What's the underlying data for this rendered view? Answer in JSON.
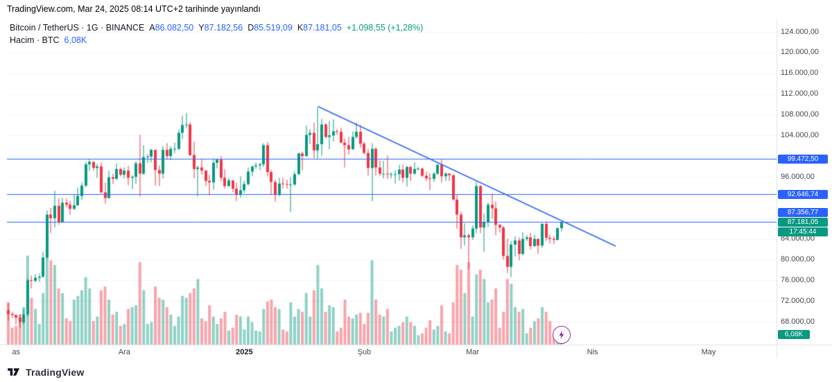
{
  "attribution": "TradingView.com, Mar 24, 2025 08:14 UTC+2 tarihinde yayınlandı",
  "legend": {
    "symbol_text": "Bitcoin / TetherUS · 1G · BINANCE",
    "ohlc": [
      {
        "key": "A",
        "value": "86.082,50"
      },
      {
        "key": "Y",
        "value": "87.182,56"
      },
      {
        "key": "D",
        "value": "85.519,09"
      },
      {
        "key": "K",
        "value": "87.181,05"
      }
    ],
    "change": "+1.098,55 (+1,28%)",
    "volume_text": "Hacim · BTC",
    "volume_value": "6,08K"
  },
  "price_axis": {
    "ticks": [
      {
        "label": "124.000,00",
        "value": 124000
      },
      {
        "label": "120.000,00",
        "value": 120000
      },
      {
        "label": "116.000,00",
        "value": 116000
      },
      {
        "label": "112.000,00",
        "value": 112000
      },
      {
        "label": "108.000,00",
        "value": 108000
      },
      {
        "label": "104.000,00",
        "value": 104000
      },
      {
        "label": "96.000,00",
        "value": 96000
      },
      {
        "label": "84.000,00",
        "value": 84000
      },
      {
        "label": "80.000,00",
        "value": 80000
      },
      {
        "label": "76.000,00",
        "value": 76000
      },
      {
        "label": "72.000,00",
        "value": 72000
      },
      {
        "label": "68.000,00",
        "value": 68000
      }
    ]
  },
  "time_axis": {
    "ticks": [
      {
        "label": "as",
        "day": 2,
        "bold": false
      },
      {
        "label": "Ara",
        "day": 30,
        "bold": false
      },
      {
        "label": "2025",
        "day": 61,
        "bold": true
      },
      {
        "label": "Şub",
        "day": 92,
        "bold": false
      },
      {
        "label": "Mar",
        "day": 120,
        "bold": false
      },
      {
        "label": "Nis",
        "day": 151,
        "bold": false
      },
      {
        "label": "May",
        "day": 181,
        "bold": false
      }
    ]
  },
  "current_price": {
    "label": "87.181,05",
    "value": 87181.05,
    "countdown": "17:45:44"
  },
  "volume_axis_badge": "6,08K",
  "logo": {
    "text": "TradingView"
  },
  "colors": {
    "up": "#089981",
    "down": "#F23645",
    "vol_up": "rgba(8,153,129,0.45)",
    "vol_down": "rgba(242,54,69,0.45)",
    "line": "#2962FF",
    "grid": "#f2f3f7",
    "separator": "#e0e3eb",
    "badge_blue": "#2962FF",
    "badge_green": "#089981",
    "boost_purple": "#9c27b0"
  },
  "chart_data": {
    "type": "candlestick",
    "title": "Bitcoin / TetherUS · 1G · BINANCE",
    "interval": "1D",
    "start_date": "2024-11-01",
    "end_date": "2025-03-24",
    "unit": "OHLC in thousands of USDT, volume in K BTC, rows are [open,high,low,close,volume]",
    "ylim": [
      66000,
      126000
    ],
    "visible_days": 199,
    "legend_position": "top-left",
    "grid": "faint",
    "candles": [
      [
        70.2,
        71.6,
        68.2,
        69.5,
        45
      ],
      [
        69.5,
        69.9,
        68.7,
        69.3,
        18
      ],
      [
        69.3,
        69.4,
        67.5,
        68.8,
        20
      ],
      [
        68.8,
        69.5,
        66.8,
        67.9,
        32
      ],
      [
        67.9,
        70.5,
        67.5,
        69.4,
        40
      ],
      [
        69.4,
        76.4,
        69.0,
        76.0,
        95
      ],
      [
        76.0,
        76.9,
        74.4,
        75.9,
        50
      ],
      [
        75.9,
        77.2,
        75.6,
        76.5,
        38
      ],
      [
        76.5,
        77.3,
        75.7,
        76.7,
        22
      ],
      [
        76.7,
        81.5,
        76.5,
        80.4,
        55
      ],
      [
        80.4,
        89.5,
        80.2,
        88.7,
        98
      ],
      [
        88.7,
        90.0,
        85.1,
        88.0,
        90
      ],
      [
        88.0,
        93.3,
        86.2,
        90.4,
        85
      ],
      [
        90.4,
        91.8,
        86.7,
        87.3,
        60
      ],
      [
        87.3,
        91.9,
        87.1,
        91.0,
        55
      ],
      [
        91.0,
        91.8,
        90.1,
        90.6,
        28
      ],
      [
        90.6,
        91.4,
        88.7,
        89.8,
        25
      ],
      [
        89.8,
        92.6,
        89.6,
        90.5,
        48
      ],
      [
        90.5,
        93.9,
        90.4,
        92.3,
        52
      ],
      [
        92.3,
        94.9,
        91.5,
        94.3,
        58
      ],
      [
        94.3,
        98.9,
        94.0,
        98.4,
        72
      ],
      [
        98.4,
        99.5,
        97.2,
        98.9,
        60
      ],
      [
        98.9,
        98.9,
        97.2,
        97.7,
        25
      ],
      [
        97.7,
        98.5,
        95.8,
        98.0,
        30
      ],
      [
        98.0,
        98.8,
        92.8,
        93.0,
        58
      ],
      [
        93.0,
        94.9,
        90.8,
        91.9,
        62
      ],
      [
        91.9,
        97.2,
        91.8,
        95.9,
        48
      ],
      [
        95.9,
        96.6,
        94.6,
        95.6,
        32
      ],
      [
        95.6,
        98.6,
        95.4,
        97.5,
        35
      ],
      [
        97.5,
        97.8,
        96.1,
        96.4,
        20
      ],
      [
        96.4,
        97.8,
        95.7,
        97.2,
        22
      ],
      [
        97.2,
        98.1,
        94.4,
        95.8,
        38
      ],
      [
        95.8,
        96.3,
        93.6,
        96.0,
        40
      ],
      [
        96.0,
        99.0,
        94.6,
        98.6,
        42
      ],
      [
        98.6,
        104.1,
        92.2,
        96.6,
        88
      ],
      [
        96.6,
        102.1,
        96.4,
        99.8,
        58
      ],
      [
        99.8,
        100.4,
        98.7,
        99.9,
        22
      ],
      [
        99.9,
        101.4,
        98.8,
        101.2,
        24
      ],
      [
        101.2,
        101.2,
        94.3,
        97.3,
        62
      ],
      [
        97.3,
        98.2,
        94.2,
        96.6,
        50
      ],
      [
        96.6,
        101.9,
        95.7,
        101.2,
        48
      ],
      [
        101.2,
        102.5,
        99.3,
        100.0,
        40
      ],
      [
        100.0,
        101.9,
        99.2,
        101.4,
        32
      ],
      [
        101.4,
        102.6,
        100.6,
        101.4,
        20
      ],
      [
        101.4,
        105.1,
        101.2,
        104.5,
        30
      ],
      [
        104.5,
        107.8,
        103.3,
        106.0,
        52
      ],
      [
        106.0,
        108.3,
        105.3,
        106.1,
        50
      ],
      [
        106.1,
        106.5,
        100.0,
        100.2,
        55
      ],
      [
        100.2,
        102.8,
        95.7,
        97.5,
        60
      ],
      [
        97.5,
        98.2,
        92.2,
        97.8,
        70
      ],
      [
        97.8,
        99.5,
        96.4,
        97.2,
        28
      ],
      [
        97.2,
        97.3,
        94.2,
        95.2,
        25
      ],
      [
        95.2,
        96.4,
        92.4,
        94.9,
        42
      ],
      [
        94.9,
        99.5,
        93.5,
        98.7,
        30
      ],
      [
        98.7,
        99.5,
        97.6,
        99.3,
        22
      ],
      [
        99.3,
        100.0,
        95.2,
        95.8,
        28
      ],
      [
        95.8,
        97.5,
        93.7,
        94.2,
        35
      ],
      [
        94.2,
        95.8,
        94.1,
        95.3,
        15
      ],
      [
        95.3,
        95.3,
        93.0,
        93.7,
        18
      ],
      [
        93.7,
        94.9,
        91.3,
        92.6,
        32
      ],
      [
        92.6,
        96.1,
        92.0,
        93.4,
        30
      ],
      [
        93.4,
        95.2,
        92.9,
        94.6,
        16
      ],
      [
        94.6,
        97.8,
        94.3,
        97.0,
        30
      ],
      [
        97.0,
        98.1,
        96.1,
        98.0,
        24
      ],
      [
        98.0,
        98.8,
        97.5,
        98.2,
        15
      ],
      [
        98.2,
        98.8,
        97.3,
        98.4,
        14
      ],
      [
        98.4,
        102.5,
        97.9,
        102.1,
        38
      ],
      [
        102.1,
        102.7,
        96.1,
        96.9,
        46
      ],
      [
        96.9,
        97.3,
        92.5,
        95.0,
        48
      ],
      [
        95.0,
        95.4,
        91.2,
        92.5,
        40
      ],
      [
        92.5,
        95.8,
        92.2,
        94.7,
        38
      ],
      [
        94.7,
        95.8,
        93.7,
        94.6,
        16
      ],
      [
        94.6,
        95.5,
        93.7,
        94.5,
        14
      ],
      [
        94.5,
        95.9,
        89.2,
        94.5,
        45
      ],
      [
        94.5,
        97.1,
        94.3,
        96.5,
        30
      ],
      [
        96.5,
        100.7,
        96.4,
        100.5,
        38
      ],
      [
        100.5,
        100.9,
        97.3,
        100.0,
        35
      ],
      [
        100.0,
        105.9,
        99.9,
        104.1,
        55
      ],
      [
        104.1,
        105.2,
        102.3,
        104.5,
        30
      ],
      [
        104.5,
        106.4,
        99.6,
        101.1,
        58
      ],
      [
        101.1,
        109.4,
        99.5,
        102.3,
        85
      ],
      [
        102.3,
        107.2,
        100.1,
        106.1,
        60
      ],
      [
        106.1,
        106.4,
        103.4,
        103.7,
        35
      ],
      [
        103.7,
        106.8,
        101.3,
        104.0,
        42
      ],
      [
        104.0,
        107.1,
        102.8,
        104.8,
        40
      ],
      [
        104.8,
        105.2,
        104.1,
        104.7,
        14
      ],
      [
        104.7,
        105.5,
        102.5,
        102.6,
        18
      ],
      [
        102.6,
        103.4,
        97.8,
        102.1,
        48
      ],
      [
        102.1,
        103.7,
        100.3,
        101.3,
        30
      ],
      [
        101.3,
        104.8,
        101.3,
        103.7,
        28
      ],
      [
        103.7,
        106.5,
        103.3,
        104.7,
        32
      ],
      [
        104.7,
        106.0,
        101.6,
        102.4,
        34
      ],
      [
        102.4,
        102.8,
        100.4,
        100.6,
        22
      ],
      [
        100.6,
        101.4,
        96.2,
        97.7,
        34
      ],
      [
        97.7,
        102.5,
        91.3,
        101.4,
        90
      ],
      [
        101.4,
        101.7,
        96.2,
        97.8,
        48
      ],
      [
        97.8,
        99.1,
        96.2,
        96.6,
        32
      ],
      [
        96.6,
        99.1,
        95.7,
        96.6,
        30
      ],
      [
        96.6,
        100.1,
        95.6,
        96.5,
        38
      ],
      [
        96.5,
        96.9,
        95.7,
        96.5,
        14
      ],
      [
        96.5,
        97.3,
        94.7,
        96.5,
        18
      ],
      [
        96.5,
        98.3,
        95.3,
        97.4,
        20
      ],
      [
        97.4,
        98.4,
        94.9,
        95.8,
        24
      ],
      [
        95.8,
        98.1,
        94.1,
        97.9,
        30
      ],
      [
        97.9,
        98.1,
        95.2,
        96.6,
        24
      ],
      [
        96.6,
        98.8,
        96.4,
        97.5,
        20
      ],
      [
        97.5,
        97.9,
        97.2,
        97.6,
        10
      ],
      [
        97.6,
        97.7,
        96.0,
        96.2,
        12
      ],
      [
        96.2,
        97.0,
        95.2,
        95.7,
        18
      ],
      [
        95.7,
        96.7,
        93.4,
        95.6,
        26
      ],
      [
        95.6,
        96.9,
        95.0,
        96.6,
        16
      ],
      [
        96.6,
        98.5,
        96.4,
        98.3,
        20
      ],
      [
        98.3,
        99.4,
        94.9,
        96.1,
        42
      ],
      [
        96.1,
        96.9,
        95.2,
        96.6,
        14
      ],
      [
        96.6,
        96.7,
        95.2,
        96.3,
        12
      ],
      [
        96.3,
        96.5,
        91.4,
        91.6,
        45
      ],
      [
        91.6,
        92.5,
        86.0,
        88.7,
        85
      ],
      [
        88.7,
        89.3,
        82.1,
        84.3,
        80
      ],
      [
        84.3,
        87.0,
        82.7,
        84.7,
        55
      ],
      [
        84.7,
        85.0,
        78.2,
        84.3,
        88
      ],
      [
        84.3,
        86.6,
        83.8,
        86.0,
        30
      ],
      [
        86.0,
        95.0,
        85.1,
        94.2,
        75
      ],
      [
        94.2,
        94.4,
        85.1,
        86.2,
        80
      ],
      [
        86.2,
        88.9,
        81.5,
        87.2,
        70
      ],
      [
        87.2,
        91.0,
        86.3,
        90.6,
        45
      ],
      [
        90.6,
        92.8,
        87.9,
        89.9,
        48
      ],
      [
        89.9,
        91.2,
        84.7,
        86.7,
        60
      ],
      [
        86.7,
        86.9,
        85.2,
        86.2,
        18
      ],
      [
        86.2,
        86.5,
        80.0,
        80.7,
        35
      ],
      [
        80.7,
        84.1,
        77.4,
        78.6,
        70
      ],
      [
        78.6,
        83.6,
        76.6,
        82.9,
        65
      ],
      [
        82.9,
        84.5,
        80.6,
        83.7,
        40
      ],
      [
        83.7,
        84.3,
        79.9,
        81.1,
        35
      ],
      [
        81.1,
        85.3,
        80.8,
        84.0,
        38
      ],
      [
        84.0,
        84.7,
        83.6,
        84.3,
        12
      ],
      [
        84.3,
        85.1,
        82.0,
        82.6,
        18
      ],
      [
        82.6,
        84.8,
        82.5,
        84.0,
        25
      ],
      [
        84.0,
        84.1,
        81.1,
        82.7,
        28
      ],
      [
        82.7,
        87.0,
        82.3,
        86.9,
        40
      ],
      [
        86.9,
        87.4,
        83.6,
        84.2,
        35
      ],
      [
        84.2,
        84.8,
        83.1,
        84.0,
        25
      ],
      [
        84.0,
        84.5,
        83.0,
        83.8,
        10
      ],
      [
        83.8,
        86.1,
        83.7,
        86.1,
        14
      ],
      [
        86.0825,
        87.18256,
        85.51909,
        87.18105,
        6.08
      ]
    ],
    "horizontal_levels": [
      {
        "price": 99472.5,
        "label": "99.472,50"
      },
      {
        "price": 92646.74,
        "label": "92.646,74"
      },
      {
        "price": 87356.77,
        "label": "87.356,77"
      }
    ],
    "trendline": {
      "from": {
        "day": 80,
        "price": 109600
      },
      "to": {
        "day": 157,
        "price": 82600
      }
    }
  }
}
